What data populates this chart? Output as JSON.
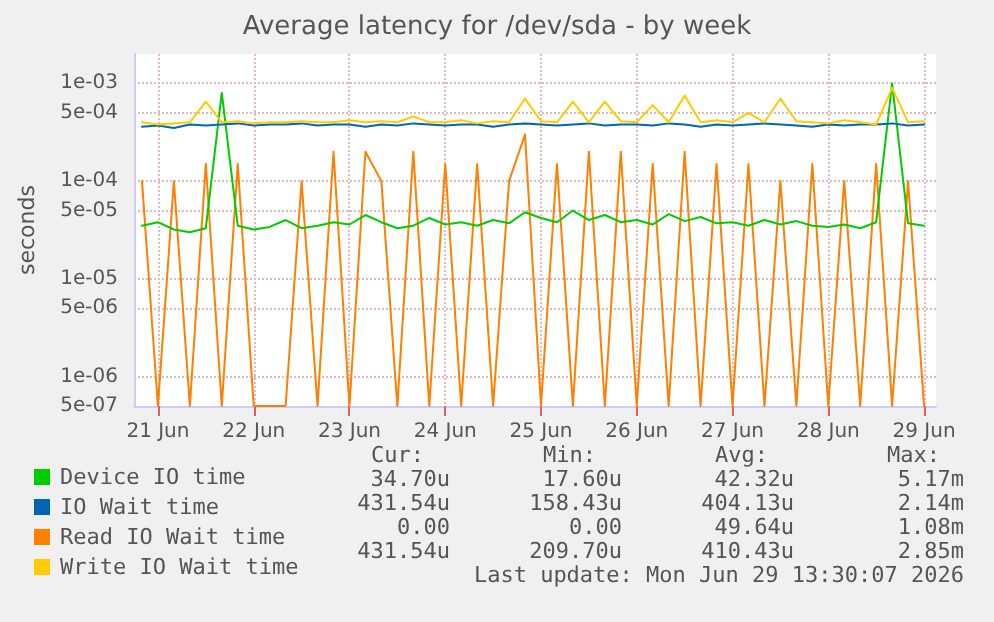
{
  "chart_data": {
    "type": "line",
    "title": "Average latency for /dev/sda - by week",
    "ylabel": "seconds",
    "log": "y",
    "grid": true,
    "legend": "bottom",
    "marker": "none",
    "line_style": "solid",
    "x": [
      "2026-06-20T20:00",
      "2026-06-21T00:00",
      "2026-06-21T04:00",
      "2026-06-21T08:00",
      "2026-06-21T12:00",
      "2026-06-21T16:00",
      "2026-06-21T20:00",
      "2026-06-22T00:00",
      "2026-06-22T04:00",
      "2026-06-22T08:00",
      "2026-06-22T12:00",
      "2026-06-22T16:00",
      "2026-06-22T20:00",
      "2026-06-23T00:00",
      "2026-06-23T04:00",
      "2026-06-23T08:00",
      "2026-06-23T12:00",
      "2026-06-23T16:00",
      "2026-06-23T20:00",
      "2026-06-24T00:00",
      "2026-06-24T04:00",
      "2026-06-24T08:00",
      "2026-06-24T12:00",
      "2026-06-24T16:00",
      "2026-06-24T20:00",
      "2026-06-25T00:00",
      "2026-06-25T04:00",
      "2026-06-25T08:00",
      "2026-06-25T12:00",
      "2026-06-25T16:00",
      "2026-06-25T20:00",
      "2026-06-26T00:00",
      "2026-06-26T04:00",
      "2026-06-26T08:00",
      "2026-06-26T12:00",
      "2026-06-26T16:00",
      "2026-06-26T20:00",
      "2026-06-27T00:00",
      "2026-06-27T04:00",
      "2026-06-27T08:00",
      "2026-06-27T12:00",
      "2026-06-27T16:00",
      "2026-06-27T20:00",
      "2026-06-28T00:00",
      "2026-06-28T04:00",
      "2026-06-28T08:00",
      "2026-06-28T12:00",
      "2026-06-28T16:00",
      "2026-06-28T20:00",
      "2026-06-29T00:00"
    ],
    "xlim": [
      "2026-06-20T18:00",
      "2026-06-29T03:00"
    ],
    "xticks": [
      {
        "value": "2026-06-21",
        "label": "21 Jun"
      },
      {
        "value": "2026-06-22",
        "label": "22 Jun"
      },
      {
        "value": "2026-06-23",
        "label": "23 Jun"
      },
      {
        "value": "2026-06-24",
        "label": "24 Jun"
      },
      {
        "value": "2026-06-25",
        "label": "25 Jun"
      },
      {
        "value": "2026-06-26",
        "label": "26 Jun"
      },
      {
        "value": "2026-06-27",
        "label": "27 Jun"
      },
      {
        "value": "2026-06-28",
        "label": "28 Jun"
      },
      {
        "value": "2026-06-29",
        "label": "29 Jun"
      }
    ],
    "ylim": [
      5e-07,
      0.002
    ],
    "yticks": [
      {
        "value": 5e-07,
        "label": "5e-07"
      },
      {
        "value": 1e-06,
        "label": "1e-06"
      },
      {
        "value": 5e-06,
        "label": "5e-06"
      },
      {
        "value": 1e-05,
        "label": "1e-05"
      },
      {
        "value": 5e-05,
        "label": "5e-05"
      },
      {
        "value": 0.0001,
        "label": "1e-04"
      },
      {
        "value": 0.0005,
        "label": "5e-04"
      },
      {
        "value": 0.001,
        "label": "1e-03"
      }
    ],
    "series": [
      {
        "name": "Read IO Wait time",
        "color": "#ff7f00",
        "values": [
          0.0001,
          5e-07,
          0.0001,
          5e-07,
          0.00015,
          5e-07,
          0.00015,
          5e-07,
          5e-07,
          5e-07,
          0.0001,
          5e-07,
          0.0002,
          5e-07,
          0.0002,
          0.0001,
          5e-07,
          0.0002,
          5e-07,
          0.00015,
          5e-07,
          0.00015,
          5e-07,
          0.0001,
          0.0003,
          5e-07,
          0.00015,
          5e-07,
          0.0002,
          5e-07,
          0.0002,
          5e-07,
          0.00015,
          5e-07,
          0.0002,
          5e-07,
          0.00015,
          5e-07,
          0.00015,
          5e-07,
          0.0001,
          5e-07,
          0.00015,
          5e-07,
          0.0001,
          5e-07,
          0.00015,
          5e-07,
          0.0001,
          5e-07
        ]
      },
      {
        "name": "Device IO time",
        "color": "#00cc00",
        "values": [
          3.5e-05,
          3.8e-05,
          3.2e-05,
          3e-05,
          3.3e-05,
          0.0008,
          3.5e-05,
          3.2e-05,
          3.4e-05,
          4e-05,
          3.3e-05,
          3.5e-05,
          3.8e-05,
          3.6e-05,
          4.5e-05,
          3.8e-05,
          3.3e-05,
          3.5e-05,
          4.2e-05,
          3.6e-05,
          3.8e-05,
          3.5e-05,
          4e-05,
          3.7e-05,
          4.8e-05,
          4.2e-05,
          3.8e-05,
          5e-05,
          4e-05,
          4.5e-05,
          3.8e-05,
          4e-05,
          3.6e-05,
          4.6e-05,
          3.9e-05,
          4.3e-05,
          3.7e-05,
          3.8e-05,
          3.5e-05,
          4e-05,
          3.6e-05,
          3.9e-05,
          3.5e-05,
          3.4e-05,
          3.6e-05,
          3.3e-05,
          3.8e-05,
          0.001,
          3.7e-05,
          3.5e-05
        ]
      },
      {
        "name": "IO Wait time",
        "color": "#0066b3",
        "values": [
          0.00036,
          0.00037,
          0.00035,
          0.00038,
          0.00037,
          0.00038,
          0.00039,
          0.00037,
          0.00038,
          0.00038,
          0.00039,
          0.00037,
          0.00038,
          0.00038,
          0.00036,
          0.00038,
          0.00037,
          0.00039,
          0.00038,
          0.00037,
          0.00038,
          0.00038,
          0.00036,
          0.00038,
          0.00039,
          0.00038,
          0.00037,
          0.00038,
          0.00039,
          0.00037,
          0.00038,
          0.00038,
          0.00037,
          0.00039,
          0.00038,
          0.00036,
          0.00038,
          0.00037,
          0.00038,
          0.00039,
          0.00038,
          0.00037,
          0.00036,
          0.00038,
          0.00037,
          0.00038,
          0.00038,
          0.00039,
          0.00037,
          0.00038
        ]
      },
      {
        "name": "Write IO Wait time",
        "color": "#ffcc00",
        "values": [
          0.0004,
          0.00038,
          0.00039,
          0.0004,
          0.00065,
          0.0004,
          0.00041,
          0.00039,
          0.0004,
          0.0004,
          0.00041,
          0.0004,
          0.0004,
          0.00042,
          0.0004,
          0.00041,
          0.0004,
          0.00046,
          0.0004,
          0.0004,
          0.00042,
          0.00039,
          0.00041,
          0.0004,
          0.0007,
          0.00041,
          0.0004,
          0.00065,
          0.0004,
          0.00065,
          0.00041,
          0.0004,
          0.0006,
          0.0004,
          0.00075,
          0.0004,
          0.00042,
          0.0004,
          0.0005,
          0.0004,
          0.0007,
          0.00041,
          0.0004,
          0.00039,
          0.00042,
          0.0004,
          0.00038,
          0.0009,
          0.0004,
          0.00041
        ]
      }
    ],
    "annotations": [
      "Cur:",
      "Min:",
      "Avg:",
      "Max:",
      "34.70u",
      "17.60u",
      "42.32u",
      "5.17m",
      "431.54u",
      "158.43u",
      "404.13u",
      "2.14m",
      "0.00",
      "0.00",
      "49.64u",
      "1.08m",
      "431.54u",
      "209.70u",
      "410.43u",
      "2.85m",
      "Last update: Mon Jun 29 13:30:07 2026"
    ]
  }
}
